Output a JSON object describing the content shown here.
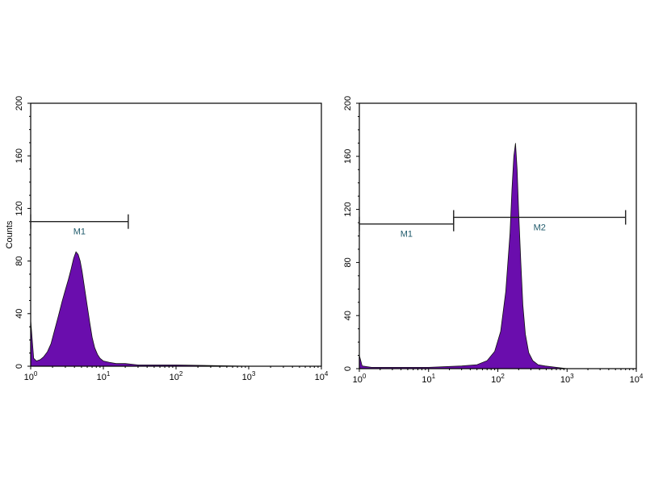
{
  "colors": {
    "fill": "#6a0dad",
    "edge": "#111111",
    "frame": "#000000",
    "marker_label": "#1f5a6b"
  },
  "chart_data": [
    {
      "type": "area",
      "panel": "left",
      "ylabel": "Counts",
      "xlabel": "",
      "xscale": "log",
      "xlim": [
        1,
        10000
      ],
      "ylim": [
        0,
        200
      ],
      "xticks": [
        {
          "base": "10",
          "exp": "0",
          "value": 1
        },
        {
          "base": "10",
          "exp": "1",
          "value": 10
        },
        {
          "base": "10",
          "exp": "2",
          "value": 100
        },
        {
          "base": "10",
          "exp": "3",
          "value": 1000
        },
        {
          "base": "10",
          "exp": "4",
          "value": 10000
        }
      ],
      "yticks": [
        "0",
        "40",
        "80",
        "120",
        "160",
        "200"
      ],
      "markers": [
        {
          "label": "M1",
          "x_start": 1,
          "x_end": 22,
          "y": 110
        }
      ],
      "histogram": {
        "x": [
          1.0,
          1.1,
          1.2,
          1.35,
          1.5,
          1.7,
          1.9,
          2.1,
          2.4,
          2.7,
          3.0,
          3.3,
          3.6,
          3.9,
          4.2,
          4.5,
          4.8,
          5.1,
          5.5,
          6.0,
          6.5,
          7.0,
          7.6,
          8.3,
          9.0,
          10.0,
          12.0,
          15.0,
          20.0,
          30.0,
          60.0,
          100.0,
          1000.0,
          10000.0
        ],
        "y": [
          35,
          6,
          4,
          5,
          7,
          11,
          17,
          26,
          38,
          49,
          58,
          66,
          74,
          82,
          87,
          85,
          80,
          72,
          60,
          46,
          33,
          22,
          14,
          9,
          6,
          4,
          3,
          2,
          2,
          1,
          1,
          1,
          0,
          0
        ]
      }
    },
    {
      "type": "area",
      "panel": "right",
      "ylabel": "",
      "xlabel": "",
      "xscale": "log",
      "xlim": [
        1,
        10000
      ],
      "ylim": [
        0,
        200
      ],
      "xticks": [
        {
          "base": "10",
          "exp": "0",
          "value": 1
        },
        {
          "base": "10",
          "exp": "1",
          "value": 10
        },
        {
          "base": "10",
          "exp": "2",
          "value": 100
        },
        {
          "base": "10",
          "exp": "3",
          "value": 1000
        },
        {
          "base": "10",
          "exp": "4",
          "value": 10000
        }
      ],
      "yticks": [
        "0",
        "40",
        "80",
        "120",
        "160",
        "200"
      ],
      "markers": [
        {
          "label": "M1",
          "x_start": 1,
          "x_end": 23,
          "y": 109
        },
        {
          "label": "M2",
          "x_start": 23,
          "x_end": 7000,
          "y": 114
        }
      ],
      "histogram": {
        "x": [
          1.0,
          1.1,
          1.5,
          3.0,
          10.0,
          30.0,
          50.0,
          70.0,
          90.0,
          110.0,
          130.0,
          150.0,
          160.0,
          170.0,
          180.0,
          190.0,
          200.0,
          215.0,
          230.0,
          250.0,
          280.0,
          320.0,
          380.0,
          480.0,
          700.0,
          1000.0,
          10000.0
        ],
        "y": [
          10,
          2,
          1,
          1,
          1,
          2,
          3,
          6,
          13,
          28,
          58,
          102,
          135,
          160,
          170,
          150,
          118,
          80,
          48,
          26,
          12,
          6,
          3,
          2,
          1,
          0,
          0
        ]
      }
    }
  ]
}
